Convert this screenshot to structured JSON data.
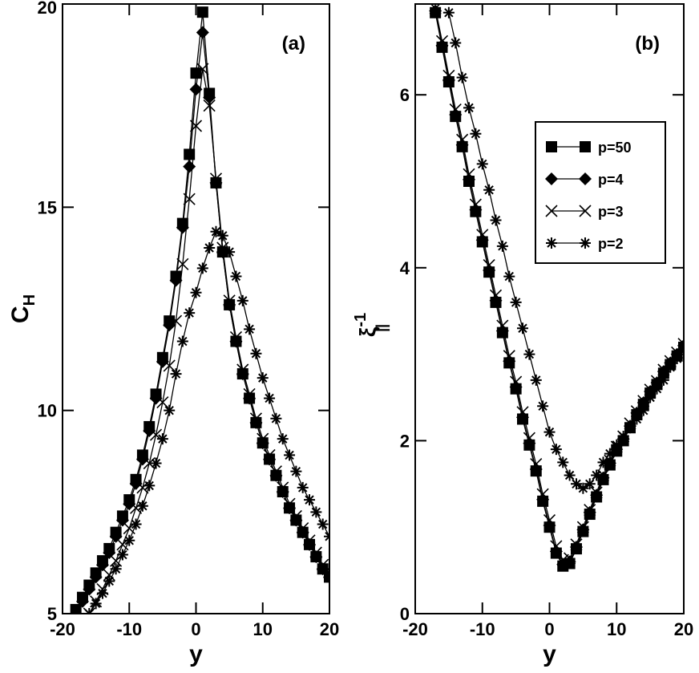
{
  "chart_data": [
    {
      "type": "line",
      "annotation": "(a)",
      "xlabel": "y",
      "ylabel": "C",
      "ylabel_sub": "H",
      "xlim": [
        -20,
        20
      ],
      "ylim": [
        5,
        20
      ],
      "xticks": [
        -20,
        -10,
        0,
        10,
        20
      ],
      "yticks": [
        5,
        10,
        15,
        20
      ],
      "series": [
        {
          "name": "p=50",
          "color": "#000000",
          "marker": "square",
          "x": [
            -18,
            -17,
            -16,
            -15,
            -14,
            -13,
            -12,
            -11,
            -10,
            -9,
            -8,
            -7,
            -6,
            -5,
            -4,
            -3,
            -2,
            -1,
            0,
            1,
            2,
            3,
            4,
            5,
            6,
            7,
            8,
            9,
            10,
            11,
            12,
            13,
            14,
            15,
            16,
            17,
            18,
            19,
            20
          ],
          "values": [
            5.1,
            5.4,
            5.7,
            6.0,
            6.3,
            6.6,
            7.0,
            7.4,
            7.8,
            8.3,
            8.9,
            9.6,
            10.4,
            11.3,
            12.2,
            13.3,
            14.6,
            16.3,
            18.3,
            19.8,
            17.8,
            15.6,
            13.9,
            12.6,
            11.7,
            10.9,
            10.3,
            9.7,
            9.2,
            8.8,
            8.4,
            8.0,
            7.6,
            7.3,
            7.0,
            6.7,
            6.4,
            6.1,
            5.9
          ]
        },
        {
          "name": "p=4",
          "color": "#000000",
          "marker": "diamond",
          "x": [
            -17,
            -16,
            -15,
            -14,
            -13,
            -12,
            -11,
            -10,
            -9,
            -8,
            -7,
            -6,
            -5,
            -4,
            -3,
            -2,
            -1,
            0,
            1,
            2,
            3,
            4,
            5,
            6,
            7,
            8,
            9,
            10,
            11,
            12,
            13,
            14,
            15,
            16,
            17,
            18,
            19,
            20
          ],
          "values": [
            5.3,
            5.6,
            5.9,
            6.2,
            6.5,
            6.9,
            7.3,
            7.7,
            8.2,
            8.8,
            9.5,
            10.3,
            11.2,
            12.1,
            13.2,
            14.5,
            16.0,
            17.9,
            19.3,
            17.7,
            15.6,
            13.9,
            12.6,
            11.7,
            10.9,
            10.3,
            9.7,
            9.2,
            8.8,
            8.4,
            8.0,
            7.6,
            7.3,
            7.0,
            6.7,
            6.4,
            6.1,
            5.9
          ]
        },
        {
          "name": "p=3",
          "color": "#000000",
          "marker": "x",
          "x": [
            -16,
            -15,
            -14,
            -13,
            -12,
            -11,
            -10,
            -9,
            -8,
            -7,
            -6,
            -5,
            -4,
            -3,
            -2,
            -1,
            0,
            1,
            2,
            3,
            4,
            5,
            6,
            7,
            8,
            9,
            10,
            11,
            12,
            13,
            14,
            15,
            16,
            17,
            18,
            19,
            20
          ],
          "values": [
            5.0,
            5.3,
            5.6,
            5.95,
            6.3,
            6.7,
            7.1,
            7.6,
            8.1,
            8.7,
            9.4,
            10.2,
            11.1,
            12.2,
            13.6,
            15.2,
            17.0,
            18.4,
            17.5,
            15.7,
            14.0,
            12.7,
            11.8,
            11.0,
            10.4,
            9.8,
            9.3,
            8.9,
            8.5,
            8.1,
            7.7,
            7.4,
            7.1,
            6.8,
            6.5,
            6.2,
            6.0
          ]
        },
        {
          "name": "p=2",
          "color": "#000000",
          "marker": "star",
          "x": [
            -16,
            -15,
            -14,
            -13,
            -12,
            -11,
            -10,
            -9,
            -8,
            -7,
            -6,
            -5,
            -4,
            -3,
            -2,
            -1,
            0,
            1,
            2,
            3,
            4,
            5,
            6,
            7,
            8,
            9,
            10,
            11,
            12,
            13,
            14,
            15,
            16,
            17,
            18,
            19,
            20
          ],
          "values": [
            5.0,
            5.25,
            5.5,
            5.8,
            6.1,
            6.45,
            6.8,
            7.2,
            7.65,
            8.15,
            8.7,
            9.3,
            10.0,
            10.9,
            11.7,
            12.4,
            12.9,
            13.5,
            14.0,
            14.4,
            14.3,
            13.9,
            13.3,
            12.7,
            12.0,
            11.4,
            10.8,
            10.3,
            9.8,
            9.3,
            8.9,
            8.5,
            8.1,
            7.8,
            7.5,
            7.2,
            6.9
          ]
        }
      ]
    },
    {
      "type": "line",
      "annotation": "(b)",
      "xlabel": "y",
      "ylabel": "ξ",
      "ylabel_sup": "-1",
      "ylabel_sub": "||",
      "xlim": [
        -20,
        20
      ],
      "ylim": [
        0,
        7.05
      ],
      "xticks": [
        -20,
        -10,
        0,
        10,
        20
      ],
      "yticks": [
        0,
        2,
        4,
        6
      ],
      "legend": true,
      "series": [
        {
          "name": "p=50",
          "color": "#000000",
          "marker": "square",
          "x": [
            -17,
            -16,
            -15,
            -14,
            -13,
            -12,
            -11,
            -10,
            -9,
            -8,
            -7,
            -6,
            -5,
            -4,
            -3,
            -2,
            -1,
            0,
            1,
            2,
            3,
            4,
            5,
            6,
            7,
            8,
            9,
            10,
            11,
            12,
            13,
            14,
            15,
            16,
            17,
            18,
            19,
            20
          ],
          "values": [
            6.95,
            6.55,
            6.15,
            5.75,
            5.4,
            5.0,
            4.65,
            4.3,
            3.95,
            3.6,
            3.25,
            2.9,
            2.6,
            2.25,
            1.95,
            1.65,
            1.3,
            1.0,
            0.7,
            0.55,
            0.58,
            0.75,
            0.95,
            1.15,
            1.35,
            1.55,
            1.72,
            1.88,
            2.0,
            2.15,
            2.3,
            2.42,
            2.55,
            2.65,
            2.78,
            2.88,
            2.98,
            3.08
          ]
        },
        {
          "name": "p=4",
          "color": "#000000",
          "marker": "diamond",
          "x": [
            -17,
            -16,
            -15,
            -14,
            -13,
            -12,
            -11,
            -10,
            -9,
            -8,
            -7,
            -6,
            -5,
            -4,
            -3,
            -2,
            -1,
            0,
            1,
            2,
            3,
            4,
            5,
            6,
            7,
            8,
            9,
            10,
            11,
            12,
            13,
            14,
            15,
            16,
            17,
            18,
            19,
            20
          ],
          "values": [
            6.97,
            6.57,
            6.17,
            5.77,
            5.42,
            5.02,
            4.67,
            4.32,
            3.97,
            3.62,
            3.27,
            2.92,
            2.62,
            2.27,
            1.97,
            1.67,
            1.32,
            1.02,
            0.72,
            0.57,
            0.6,
            0.77,
            0.97,
            1.17,
            1.37,
            1.57,
            1.74,
            1.9,
            2.02,
            2.17,
            2.32,
            2.44,
            2.57,
            2.67,
            2.8,
            2.9,
            3.0,
            3.1
          ]
        },
        {
          "name": "p=3",
          "color": "#000000",
          "marker": "x",
          "x": [
            -17,
            -16,
            -15,
            -14,
            -13,
            -12,
            -11,
            -10,
            -9,
            -8,
            -7,
            -6,
            -5,
            -4,
            -3,
            -2,
            -1,
            0,
            1,
            2,
            3,
            4,
            5,
            6,
            7,
            8,
            9,
            10,
            11,
            12,
            13,
            14,
            15,
            16,
            17,
            18,
            19,
            20
          ],
          "values": [
            7.0,
            6.62,
            6.22,
            5.83,
            5.48,
            5.08,
            4.73,
            4.38,
            4.03,
            3.68,
            3.33,
            2.98,
            2.68,
            2.33,
            2.03,
            1.73,
            1.38,
            1.08,
            0.78,
            0.62,
            0.64,
            0.8,
            1.0,
            1.2,
            1.4,
            1.6,
            1.77,
            1.93,
            2.05,
            2.2,
            2.34,
            2.46,
            2.59,
            2.69,
            2.82,
            2.92,
            3.02,
            3.12
          ]
        },
        {
          "name": "p=2",
          "color": "#000000",
          "marker": "star",
          "x": [
            -15,
            -14,
            -13,
            -12,
            -11,
            -10,
            -9,
            -8,
            -7,
            -6,
            -5,
            -4,
            -3,
            -2,
            -1,
            0,
            1,
            2,
            3,
            4,
            5,
            6,
            7,
            8,
            9,
            10,
            11,
            12,
            13,
            14,
            15,
            16,
            17,
            18,
            19,
            20
          ],
          "values": [
            6.95,
            6.6,
            6.2,
            5.85,
            5.55,
            5.2,
            4.9,
            4.55,
            4.25,
            3.9,
            3.6,
            3.3,
            3.0,
            2.7,
            2.4,
            2.1,
            1.9,
            1.75,
            1.6,
            1.5,
            1.45,
            1.5,
            1.6,
            1.75,
            1.85,
            1.95,
            2.05,
            2.15,
            2.25,
            2.35,
            2.5,
            2.6,
            2.7,
            2.85,
            2.95,
            3.05
          ]
        }
      ]
    }
  ]
}
